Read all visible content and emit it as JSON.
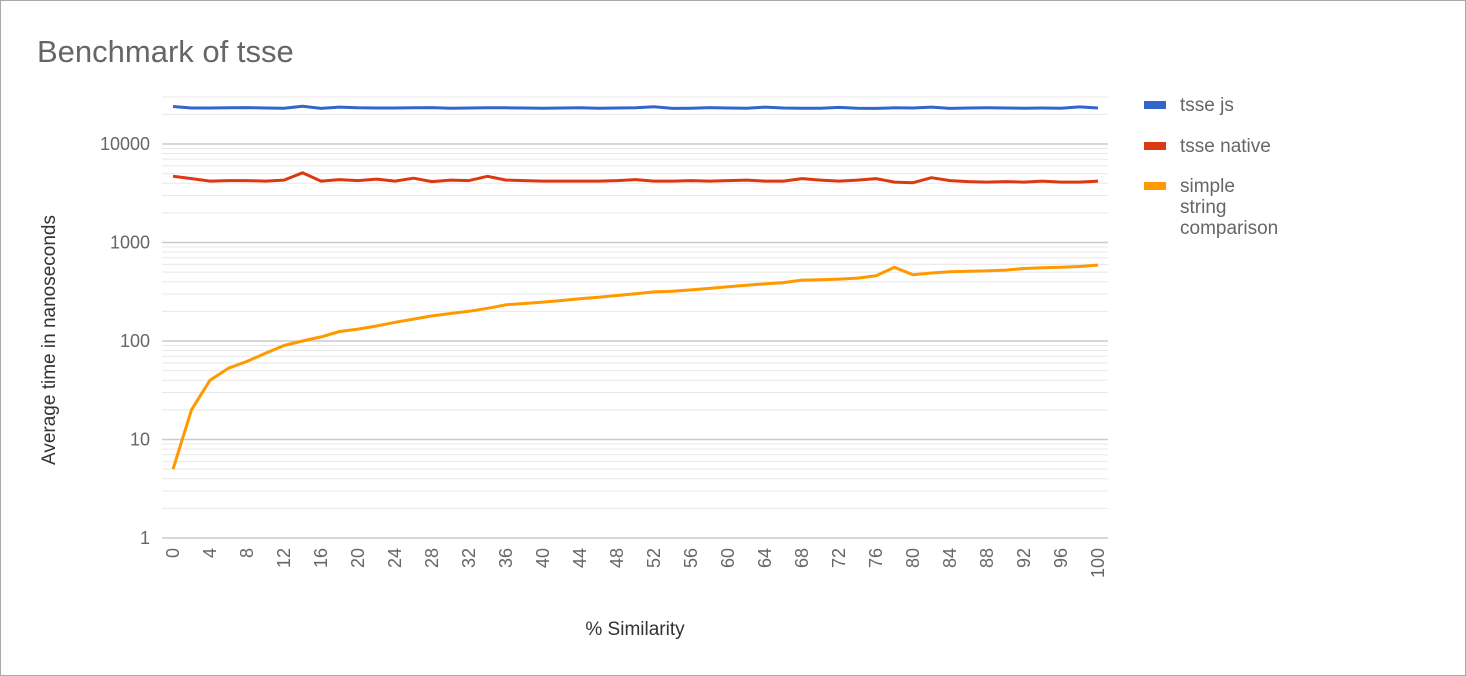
{
  "chart_data": {
    "type": "line",
    "title": "Benchmark of tsse",
    "xlabel": "% Similarity",
    "ylabel": "Average time in nanoseconds",
    "y_scale": "log",
    "ylim": [
      1,
      30000
    ],
    "xlim": [
      0,
      100
    ],
    "y_ticks": [
      1,
      10,
      100,
      1000,
      10000
    ],
    "y_tick_labels": [
      "1",
      "10",
      "100",
      "1000",
      "10000"
    ],
    "x_ticks": [
      0,
      4,
      8,
      12,
      16,
      20,
      24,
      28,
      32,
      36,
      40,
      44,
      48,
      52,
      56,
      60,
      64,
      68,
      72,
      76,
      80,
      84,
      88,
      92,
      96,
      100
    ],
    "x_tick_labels": [
      "0",
      "4",
      "8",
      "12",
      "16",
      "20",
      "24",
      "28",
      "32",
      "36",
      "40",
      "44",
      "48",
      "52",
      "56",
      "60",
      "64",
      "68",
      "72",
      "76",
      "80",
      "84",
      "88",
      "92",
      "96",
      "100"
    ],
    "grid": true,
    "legend_position": "right",
    "x": [
      0,
      2,
      4,
      6,
      8,
      10,
      12,
      14,
      16,
      18,
      20,
      22,
      24,
      26,
      28,
      30,
      32,
      34,
      36,
      38,
      40,
      42,
      44,
      46,
      48,
      50,
      52,
      54,
      56,
      58,
      60,
      62,
      64,
      66,
      68,
      70,
      72,
      74,
      76,
      78,
      80,
      82,
      84,
      86,
      88,
      90,
      92,
      94,
      96,
      98,
      100
    ],
    "series": [
      {
        "name": "tsse js",
        "color": "#3366cc",
        "values": [
          24000,
          23200,
          23200,
          23300,
          23400,
          23200,
          23100,
          24200,
          23000,
          23700,
          23300,
          23200,
          23200,
          23300,
          23400,
          23100,
          23200,
          23300,
          23300,
          23200,
          23100,
          23200,
          23300,
          23100,
          23200,
          23300,
          23900,
          23000,
          23100,
          23400,
          23200,
          23100,
          23700,
          23200,
          23100,
          23100,
          23500,
          23100,
          23000,
          23300,
          23200,
          23700,
          23000,
          23200,
          23300,
          23200,
          23100,
          23200,
          23100,
          23800,
          23200
        ]
      },
      {
        "name": "tsse native",
        "color": "#dc3912",
        "values": [
          4700,
          4450,
          4200,
          4250,
          4250,
          4200,
          4300,
          5100,
          4200,
          4350,
          4250,
          4400,
          4200,
          4500,
          4150,
          4300,
          4250,
          4700,
          4300,
          4250,
          4200,
          4200,
          4200,
          4200,
          4250,
          4350,
          4200,
          4200,
          4250,
          4200,
          4250,
          4300,
          4200,
          4200,
          4450,
          4300,
          4200,
          4300,
          4450,
          4100,
          4050,
          4550,
          4250,
          4150,
          4100,
          4150,
          4100,
          4200,
          4100,
          4100,
          4200
        ]
      },
      {
        "name": "simple string comparison",
        "color": "#ff9900",
        "values": [
          5,
          20,
          40,
          53,
          62,
          75,
          90,
          100,
          110,
          125,
          132,
          142,
          155,
          167,
          180,
          190,
          200,
          215,
          233,
          240,
          248,
          258,
          268,
          278,
          290,
          302,
          315,
          320,
          330,
          342,
          355,
          368,
          380,
          392,
          415,
          418,
          425,
          435,
          460,
          560,
          470,
          490,
          505,
          510,
          515,
          525,
          545,
          555,
          560,
          570,
          590
        ]
      }
    ]
  }
}
